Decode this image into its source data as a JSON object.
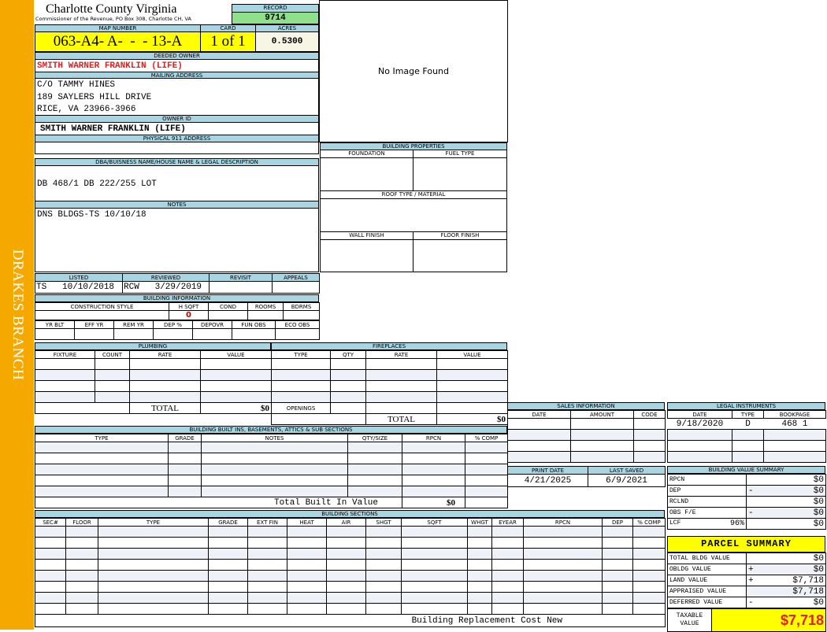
{
  "sidebar": {
    "district": "DRAKES BRANCH"
  },
  "header": {
    "county": "Charlotte County Virginia",
    "subtitle": "Commissioner of the Revenue, PO Box 308, Charlotte CH, VA",
    "record_label": "RECORD",
    "record": "9714"
  },
  "parcel": {
    "map_label": "MAP NUMBER",
    "map_number": "063-A4- A-  -  - 13-A",
    "card_label": "CARD",
    "card": "1 of 1",
    "acres_label": "ACRES",
    "acres": "0.5300"
  },
  "owner": {
    "deeded_label": "DEEDED OWNER",
    "deeded": "SMITH WARNER FRANKLIN (LIFE)",
    "mailing_label": "MAILING ADDRESS",
    "mailing": [
      "C/O TAMMY HINES",
      "189 SAYLERS HILL DRIVE",
      "RICE, VA 23966-3966"
    ],
    "id_label": "OWNER ID",
    "id": "SMITH WARNER FRANKLIN (LIFE)",
    "physical_label": "PHYSICAL 911 ADDRESS",
    "physical": ""
  },
  "legal": {
    "label": "DBA/BUISNESS NAME/HOUSE NAME & LEGAL DESCRIPTION",
    "value": "DB 468/1 DB 222/255 LOT"
  },
  "notes": {
    "label": "NOTES",
    "value": "DNS BLDGS-TS 10/10/18"
  },
  "image": {
    "text": "No Image Found"
  },
  "review": {
    "headers": [
      "LISTED",
      "REVIEWED",
      "REVISIT",
      "APPEALS"
    ],
    "values": [
      "TS   10/10/2018",
      "RCW   3/29/2019",
      "",
      ""
    ]
  },
  "building_info": {
    "title": "BUILDING INFORMATION",
    "headers1": [
      "CONSTRUCTION STYLE",
      "H SQFT",
      "COND",
      "ROOMS",
      "BDRMS"
    ],
    "values1": [
      "",
      "0",
      "",
      "",
      ""
    ],
    "headers2": [
      "YR BLT",
      "EFF YR",
      "REM YR",
      "DEP %",
      "DEPOVR",
      "FUN OBS",
      "ECO OBS"
    ]
  },
  "building_properties": {
    "title": "BUILDING PROPERTIES",
    "foundation": "FOUNDATION",
    "fuel": "FUEL TYPE",
    "roof": "ROOF TYPE / MATERIAL",
    "wall": "WALL FINISH",
    "floor": "FLOOR FINISH"
  },
  "plumbing": {
    "title": "PLUMBING",
    "headers": [
      "FIXTURE",
      "COUNT",
      "RATE",
      "VALUE"
    ],
    "total_label": "TOTAL",
    "total": "$0"
  },
  "fireplaces": {
    "title": "FIREPLACES",
    "headers": [
      "TYPE",
      "QTY",
      "RATE",
      "VALUE"
    ],
    "openings": "OPENINGS",
    "total_label": "TOTAL",
    "total": "$0"
  },
  "builtins": {
    "title": "BUILDING BUILT INS, BASEMENTS, ATTICS & SUB SECTIONS",
    "headers": [
      "TYPE",
      "GRADE",
      "NOTES",
      "QTY/SIZE",
      "RPCN",
      "% COMP"
    ],
    "total_label": "Total Built In Value",
    "total": "$0"
  },
  "sections": {
    "title": "BUILDING SECTIONS",
    "headers": [
      "SEC#",
      "FLOOR",
      "TYPE",
      "GRADE",
      "EXT FIN",
      "HEAT",
      "AIR",
      "SHGT",
      "SQFT",
      "WHGT",
      "EYEAR",
      "RPCN",
      "DEP",
      "% COMP"
    ],
    "footer": "Building Replacement Cost New"
  },
  "sales": {
    "title": "SALES INFORMATION",
    "headers": [
      "DATE",
      "AMOUNT",
      "CODE"
    ]
  },
  "instruments": {
    "title": "LEGAL INSTRUMENTS",
    "headers": [
      "DATE",
      "TYPE",
      "BOOKPAGE"
    ],
    "rows": [
      [
        "9/18/2020",
        "D",
        "468 1"
      ]
    ]
  },
  "dates": {
    "headers": [
      "PRINT DATE",
      "LAST SAVED"
    ],
    "values": [
      "4/21/2025",
      "6/9/2021"
    ]
  },
  "bvs": {
    "title": "BUILDING VALUE SUMMARY",
    "rows": [
      {
        "label": "RPCN",
        "op": "",
        "value": "$0"
      },
      {
        "label": "DEP",
        "op": "-",
        "value": "$0"
      },
      {
        "label": "RCLND",
        "op": "",
        "value": "$0"
      },
      {
        "label": "OBS F/E",
        "op": "-",
        "value": "$0"
      },
      {
        "label": "LCF",
        "pct": "96%",
        "op": "",
        "value": "$0"
      }
    ]
  },
  "summary": {
    "title": "PARCEL SUMMARY",
    "rows": [
      {
        "label": "TOTAL BLDG VALUE",
        "op": "",
        "value": "$0"
      },
      {
        "label": "OBLDG VALUE",
        "op": "+",
        "value": "$0"
      },
      {
        "label": "LAND VALUE",
        "op": "+",
        "value": "$7,718"
      },
      {
        "label": "APPRAISED VALUE",
        "op": "",
        "value": "$7,718"
      },
      {
        "label": "DEFERRED VALUE",
        "op": "-",
        "value": "$0"
      }
    ],
    "taxable_label": "TAXABLE VALUE",
    "taxable": "$7,718"
  },
  "colors": {
    "side": "#f5a800",
    "header": "#a9d5e3",
    "record": "#8fe08a",
    "highlight": "#ffff00",
    "red": "#e02020"
  }
}
